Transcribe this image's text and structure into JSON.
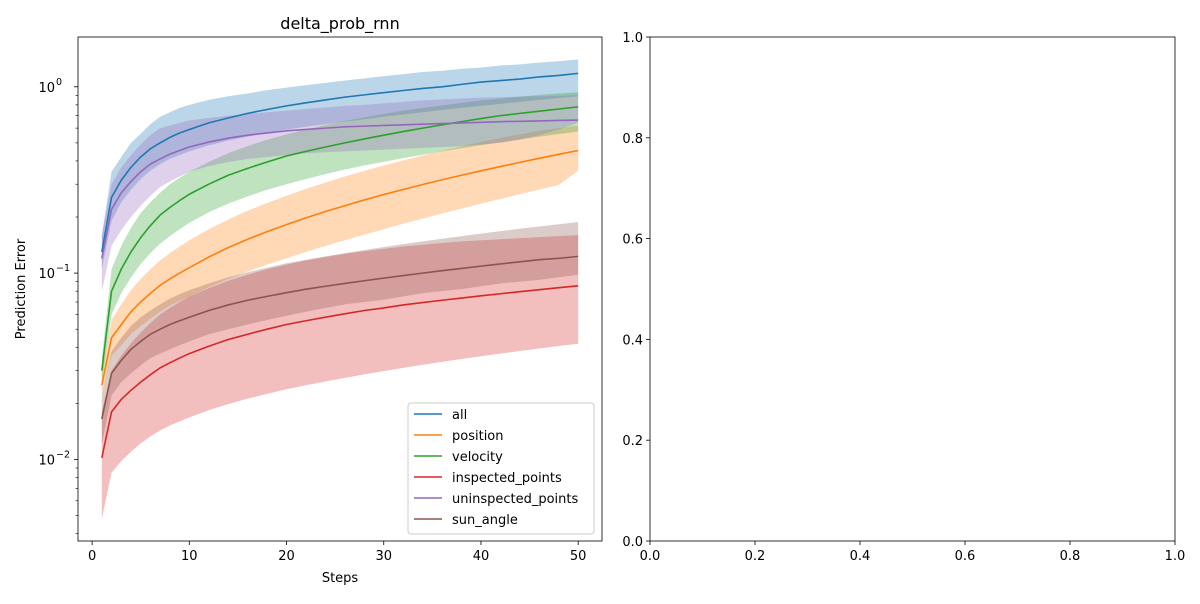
{
  "chart_data": [
    {
      "type": "line",
      "title": "delta_prob_rnn",
      "xlabel": "Steps",
      "ylabel": "Prediction Error",
      "xlim": [
        -1.45,
        52.45
      ],
      "ylim": [
        0.00365,
        1.85
      ],
      "yscale": "log",
      "x_ticks": [
        0,
        10,
        20,
        30,
        40,
        50
      ],
      "y_ticks": [
        {
          "value": 0.01,
          "base": "10",
          "exp": "−2"
        },
        {
          "value": 0.1,
          "base": "10",
          "exp": "−1"
        },
        {
          "value": 1,
          "base": "10",
          "exp": "0"
        }
      ],
      "legend_position": "lower right",
      "x": [
        1,
        2,
        3,
        4,
        5,
        6,
        7,
        8,
        9,
        10,
        12,
        14,
        16,
        18,
        20,
        22,
        24,
        26,
        28,
        30,
        32,
        34,
        36,
        38,
        40,
        42,
        44,
        46,
        48,
        50
      ],
      "series": [
        {
          "name": "all",
          "color": "#1f77b4",
          "values": [
            0.13,
            0.255,
            0.315,
            0.37,
            0.42,
            0.465,
            0.5,
            0.535,
            0.565,
            0.59,
            0.64,
            0.68,
            0.72,
            0.755,
            0.79,
            0.82,
            0.85,
            0.88,
            0.905,
            0.93,
            0.955,
            0.98,
            1.0,
            1.03,
            1.06,
            1.08,
            1.1,
            1.13,
            1.15,
            1.18
          ],
          "lower": [
            0.105,
            0.19,
            0.24,
            0.28,
            0.32,
            0.355,
            0.385,
            0.41,
            0.43,
            0.45,
            0.485,
            0.515,
            0.54,
            0.565,
            0.59,
            0.61,
            0.63,
            0.65,
            0.67,
            0.69,
            0.71,
            0.73,
            0.75,
            0.77,
            0.79,
            0.81,
            0.83,
            0.85,
            0.87,
            0.89
          ],
          "upper": [
            0.16,
            0.35,
            0.42,
            0.5,
            0.56,
            0.63,
            0.69,
            0.73,
            0.77,
            0.8,
            0.85,
            0.89,
            0.92,
            0.96,
            0.99,
            1.02,
            1.05,
            1.08,
            1.11,
            1.14,
            1.17,
            1.2,
            1.22,
            1.25,
            1.27,
            1.3,
            1.32,
            1.35,
            1.37,
            1.4
          ]
        },
        {
          "name": "position",
          "color": "#ff7f0e",
          "values": [
            0.025,
            0.045,
            0.053,
            0.062,
            0.07,
            0.078,
            0.086,
            0.093,
            0.1,
            0.107,
            0.122,
            0.137,
            0.152,
            0.167,
            0.182,
            0.198,
            0.214,
            0.23,
            0.247,
            0.264,
            0.281,
            0.299,
            0.317,
            0.335,
            0.354,
            0.373,
            0.393,
            0.413,
            0.434,
            0.455
          ],
          "lower": [
            0.022,
            0.036,
            0.041,
            0.047,
            0.052,
            0.057,
            0.062,
            0.067,
            0.071,
            0.075,
            0.084,
            0.093,
            0.102,
            0.111,
            0.12,
            0.13,
            0.14,
            0.15,
            0.161,
            0.172,
            0.184,
            0.196,
            0.209,
            0.222,
            0.236,
            0.25,
            0.265,
            0.281,
            0.297,
            0.355
          ],
          "upper": [
            0.029,
            0.056,
            0.068,
            0.081,
            0.093,
            0.105,
            0.117,
            0.128,
            0.139,
            0.15,
            0.172,
            0.194,
            0.216,
            0.238,
            0.26,
            0.283,
            0.306,
            0.33,
            0.354,
            0.378,
            0.403,
            0.428,
            0.453,
            0.479,
            0.505,
            0.53,
            0.555,
            0.58,
            0.6,
            0.62
          ]
        },
        {
          "name": "velocity",
          "color": "#2ca02c",
          "values": [
            0.03,
            0.08,
            0.105,
            0.13,
            0.155,
            0.18,
            0.205,
            0.225,
            0.245,
            0.265,
            0.3,
            0.335,
            0.365,
            0.395,
            0.425,
            0.45,
            0.475,
            0.5,
            0.525,
            0.55,
            0.575,
            0.6,
            0.625,
            0.65,
            0.675,
            0.7,
            0.72,
            0.74,
            0.76,
            0.78
          ],
          "lower": [
            0.026,
            0.06,
            0.078,
            0.095,
            0.112,
            0.128,
            0.144,
            0.158,
            0.172,
            0.186,
            0.212,
            0.236,
            0.258,
            0.28,
            0.3,
            0.32,
            0.34,
            0.36,
            0.378,
            0.396,
            0.414,
            0.432,
            0.45,
            0.468,
            0.486,
            0.504,
            0.522,
            0.54,
            0.558,
            0.575
          ],
          "upper": [
            0.035,
            0.105,
            0.14,
            0.175,
            0.21,
            0.24,
            0.27,
            0.3,
            0.325,
            0.35,
            0.395,
            0.44,
            0.48,
            0.52,
            0.555,
            0.59,
            0.625,
            0.655,
            0.685,
            0.715,
            0.745,
            0.77,
            0.795,
            0.82,
            0.845,
            0.865,
            0.885,
            0.905,
            0.92,
            0.935
          ]
        },
        {
          "name": "inspected_points",
          "color": "#d62728",
          "values": [
            0.0102,
            0.018,
            0.021,
            0.0235,
            0.026,
            0.0285,
            0.031,
            0.033,
            0.035,
            0.037,
            0.0405,
            0.044,
            0.047,
            0.05,
            0.053,
            0.0555,
            0.058,
            0.0605,
            0.063,
            0.065,
            0.0675,
            0.0695,
            0.0715,
            0.0735,
            0.0755,
            0.0775,
            0.0795,
            0.0815,
            0.0835,
            0.0855
          ],
          "lower": [
            0.0048,
            0.0085,
            0.0098,
            0.011,
            0.0122,
            0.0133,
            0.0143,
            0.0152,
            0.016,
            0.0168,
            0.0184,
            0.0198,
            0.0212,
            0.0225,
            0.0238,
            0.025,
            0.0262,
            0.0274,
            0.0286,
            0.0298,
            0.031,
            0.0322,
            0.0334,
            0.0346,
            0.0358,
            0.037,
            0.0382,
            0.0394,
            0.0406,
            0.0418
          ],
          "upper": [
            0.018,
            0.03,
            0.036,
            0.042,
            0.048,
            0.054,
            0.06,
            0.065,
            0.07,
            0.075,
            0.083,
            0.091,
            0.098,
            0.105,
            0.111,
            0.117,
            0.122,
            0.127,
            0.131,
            0.135,
            0.139,
            0.142,
            0.145,
            0.148,
            0.15,
            0.152,
            0.154,
            0.156,
            0.158,
            0.16
          ]
        },
        {
          "name": "uninspected_points",
          "color": "#9467bd",
          "values": [
            0.12,
            0.22,
            0.27,
            0.31,
            0.35,
            0.385,
            0.41,
            0.435,
            0.455,
            0.475,
            0.505,
            0.53,
            0.55,
            0.565,
            0.58,
            0.59,
            0.6,
            0.61,
            0.615,
            0.62,
            0.625,
            0.63,
            0.635,
            0.64,
            0.645,
            0.65,
            0.653,
            0.656,
            0.66,
            0.663
          ],
          "lower": [
            0.08,
            0.14,
            0.17,
            0.2,
            0.23,
            0.26,
            0.29,
            0.31,
            0.33,
            0.35,
            0.375,
            0.395,
            0.41,
            0.42,
            0.43,
            0.44,
            0.445,
            0.45,
            0.455,
            0.46,
            0.465,
            0.47,
            0.475,
            0.48,
            0.49,
            0.5,
            0.52,
            0.55,
            0.59,
            0.64
          ],
          "upper": [
            0.16,
            0.3,
            0.37,
            0.43,
            0.49,
            0.55,
            0.6,
            0.62,
            0.64,
            0.66,
            0.68,
            0.7,
            0.715,
            0.73,
            0.745,
            0.76,
            0.775,
            0.79,
            0.8,
            0.815,
            0.83,
            0.845,
            0.855,
            0.865,
            0.875,
            0.88,
            0.885,
            0.89,
            0.895,
            0.9
          ]
        },
        {
          "name": "sun_angle",
          "color": "#8c564b",
          "values": [
            0.0165,
            0.029,
            0.034,
            0.039,
            0.043,
            0.047,
            0.05,
            0.053,
            0.0555,
            0.058,
            0.063,
            0.0675,
            0.0715,
            0.075,
            0.0785,
            0.082,
            0.085,
            0.088,
            0.091,
            0.094,
            0.097,
            0.1,
            0.103,
            0.106,
            0.109,
            0.112,
            0.115,
            0.118,
            0.12,
            0.123
          ],
          "lower": [
            0.012,
            0.022,
            0.026,
            0.029,
            0.032,
            0.035,
            0.037,
            0.039,
            0.041,
            0.043,
            0.047,
            0.05,
            0.053,
            0.056,
            0.059,
            0.062,
            0.065,
            0.068,
            0.07,
            0.072,
            0.075,
            0.078,
            0.08,
            0.082,
            0.085,
            0.088,
            0.09,
            0.092,
            0.095,
            0.098
          ],
          "upper": [
            0.022,
            0.038,
            0.045,
            0.052,
            0.058,
            0.063,
            0.068,
            0.073,
            0.077,
            0.081,
            0.088,
            0.095,
            0.101,
            0.107,
            0.113,
            0.118,
            0.123,
            0.128,
            0.133,
            0.138,
            0.143,
            0.148,
            0.153,
            0.158,
            0.163,
            0.168,
            0.173,
            0.178,
            0.183,
            0.188
          ]
        }
      ]
    },
    {
      "type": "line",
      "title": "",
      "xlim": [
        0,
        1
      ],
      "ylim": [
        0,
        1
      ],
      "x_ticks": [
        "0.0",
        "0.2",
        "0.4",
        "0.6",
        "0.8",
        "1.0"
      ],
      "y_ticks": [
        "0.0",
        "0.2",
        "0.4",
        "0.6",
        "0.8",
        "1.0"
      ],
      "series": []
    }
  ]
}
